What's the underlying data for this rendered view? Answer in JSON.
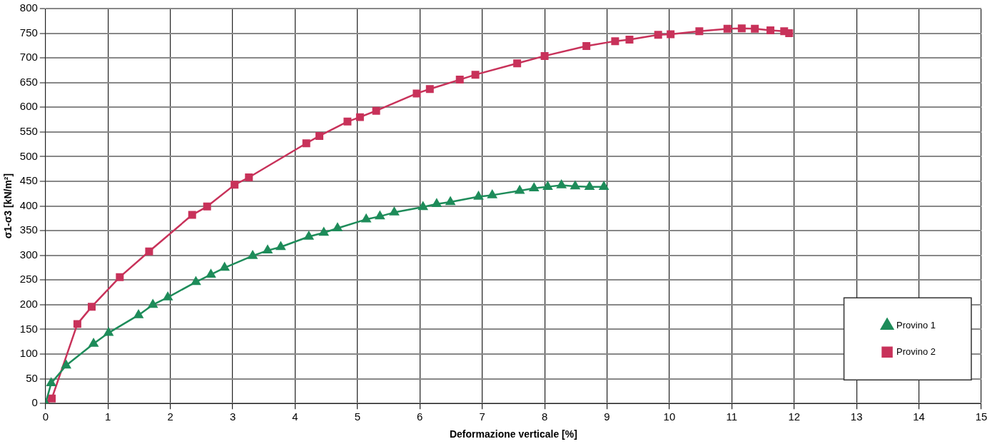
{
  "chart_data": {
    "type": "line",
    "xlabel": "Deformazione verticale [%]",
    "ylabel": "σ1-σ3 [kN/m²]",
    "xlim": [
      0,
      15
    ],
    "xticks": [
      0,
      1,
      2,
      3,
      4,
      5,
      6,
      7,
      8,
      9,
      10,
      11,
      12,
      13,
      14,
      15
    ],
    "ylim": [
      0,
      800
    ],
    "yticks": [
      0,
      50,
      100,
      150,
      200,
      250,
      300,
      350,
      400,
      450,
      500,
      550,
      600,
      650,
      700,
      750,
      800
    ],
    "grid": true,
    "legend": "bottom right",
    "line_style": "solid",
    "series": [
      {
        "name": "Provino 1",
        "color": "#1e8c5a",
        "marker": "triangle",
        "x": [
          0,
          0.09,
          0.33,
          0.77,
          1.01,
          1.49,
          1.72,
          1.96,
          2.41,
          2.65,
          2.87,
          3.32,
          3.56,
          3.77,
          4.22,
          4.46,
          4.68,
          5.14,
          5.36,
          5.59,
          6.05,
          6.27,
          6.49,
          6.94,
          7.16,
          7.6,
          7.83,
          8.05,
          8.27,
          8.49,
          8.72,
          8.95
        ],
        "values": [
          0,
          41,
          77,
          121,
          143,
          179,
          200,
          215,
          246,
          261,
          275,
          299,
          310,
          317,
          338,
          346,
          355,
          373,
          379,
          387,
          398,
          404,
          408,
          419,
          422,
          431,
          436,
          439,
          442,
          440,
          439,
          439
        ]
      },
      {
        "name": "Provino 2",
        "color": "#c8325a",
        "marker": "square",
        "x": [
          0,
          0.1,
          0.51,
          0.74,
          1.19,
          1.66,
          2.35,
          2.59,
          3.03,
          3.26,
          4.18,
          4.39,
          4.84,
          5.04,
          5.3,
          5.95,
          6.16,
          6.64,
          6.89,
          7.56,
          8,
          8.67,
          9.13,
          9.36,
          9.82,
          10.02,
          10.48,
          10.93,
          11.16,
          11.37,
          11.62,
          11.84,
          11.92
        ],
        "values": [
          0,
          10,
          161,
          196,
          256,
          308,
          382,
          399,
          443,
          458,
          527,
          542,
          571,
          580,
          593,
          628,
          637,
          656,
          666,
          689,
          704,
          724,
          734,
          737,
          747,
          748,
          754,
          759,
          760,
          759,
          756,
          754,
          750
        ]
      }
    ]
  }
}
